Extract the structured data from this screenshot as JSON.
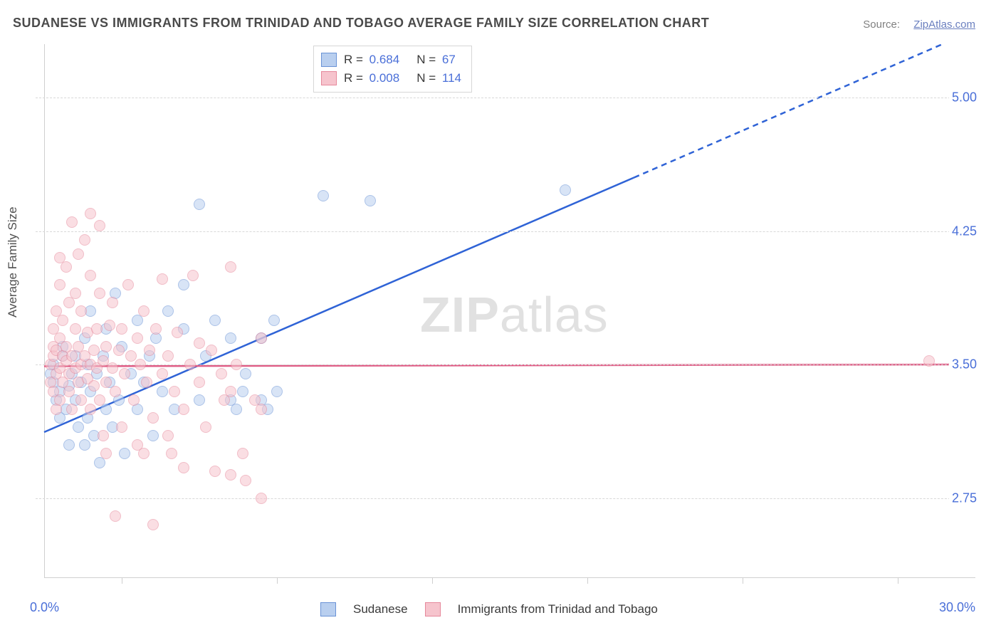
{
  "title": "SUDANESE VS IMMIGRANTS FROM TRINIDAD AND TOBAGO AVERAGE FAMILY SIZE CORRELATION CHART",
  "source_label": "Source:",
  "source_link": "ZipAtlas.com",
  "watermark_1": "ZIP",
  "watermark_2": "atlas",
  "chart": {
    "type": "scatter",
    "y_axis_title": "Average Family Size",
    "xlim": [
      0.0,
      30.0
    ],
    "ylim": [
      2.3,
      5.3
    ],
    "x_min_label": "0.0%",
    "x_max_label": "30.0%",
    "y_ticks": [
      2.75,
      3.5,
      4.25,
      5.0
    ],
    "y_tick_labels": [
      "2.75",
      "3.50",
      "4.25",
      "5.00"
    ],
    "x_tick_positions": [
      2.5,
      7.5,
      12.5,
      17.5,
      22.5,
      27.5
    ],
    "background_color": "#ffffff",
    "grid_color": "#d8d8d8",
    "axis_line_color": "#cfcfcf",
    "marker_radius": 8,
    "marker_opacity": 0.55,
    "series": [
      {
        "id": "sudanese",
        "label": "Sudanese",
        "fill": "#b9cfef",
        "stroke": "#6a93d6",
        "line_color": "#2f63d6",
        "R": "0.684",
        "N": "67",
        "trend": {
          "x1": 0.0,
          "y1": 3.12,
          "x2_solid": 19.0,
          "y2_solid": 4.55,
          "x2_dash": 30.0,
          "y2_dash": 5.38
        },
        "points": [
          [
            0.2,
            3.45
          ],
          [
            0.3,
            3.4
          ],
          [
            0.3,
            3.5
          ],
          [
            0.4,
            3.3
          ],
          [
            0.5,
            3.35
          ],
          [
            0.5,
            3.2
          ],
          [
            0.6,
            3.55
          ],
          [
            0.6,
            3.6
          ],
          [
            0.7,
            3.25
          ],
          [
            0.8,
            3.38
          ],
          [
            0.8,
            3.05
          ],
          [
            0.9,
            3.45
          ],
          [
            1.0,
            3.3
          ],
          [
            1.0,
            3.55
          ],
          [
            1.1,
            3.15
          ],
          [
            1.2,
            3.4
          ],
          [
            1.3,
            3.05
          ],
          [
            1.3,
            3.65
          ],
          [
            1.4,
            3.5
          ],
          [
            1.4,
            3.2
          ],
          [
            1.5,
            3.8
          ],
          [
            1.5,
            3.35
          ],
          [
            1.6,
            3.1
          ],
          [
            1.7,
            3.45
          ],
          [
            1.8,
            2.95
          ],
          [
            1.9,
            3.55
          ],
          [
            2.0,
            3.25
          ],
          [
            2.0,
            3.7
          ],
          [
            2.1,
            3.4
          ],
          [
            2.2,
            3.15
          ],
          [
            2.3,
            3.9
          ],
          [
            2.4,
            3.3
          ],
          [
            2.5,
            3.6
          ],
          [
            2.6,
            3.0
          ],
          [
            2.8,
            3.45
          ],
          [
            3.0,
            3.25
          ],
          [
            3.0,
            3.75
          ],
          [
            3.2,
            3.4
          ],
          [
            3.4,
            3.55
          ],
          [
            3.5,
            3.1
          ],
          [
            3.6,
            3.65
          ],
          [
            3.8,
            3.35
          ],
          [
            4.0,
            3.8
          ],
          [
            4.2,
            3.25
          ],
          [
            4.5,
            3.7
          ],
          [
            4.5,
            3.95
          ],
          [
            5.0,
            4.4
          ],
          [
            5.0,
            3.3
          ],
          [
            5.2,
            3.55
          ],
          [
            5.5,
            3.75
          ],
          [
            6.0,
            3.3
          ],
          [
            6.0,
            3.65
          ],
          [
            6.2,
            3.25
          ],
          [
            6.4,
            3.35
          ],
          [
            6.5,
            3.45
          ],
          [
            7.0,
            3.65
          ],
          [
            7.0,
            3.3
          ],
          [
            7.2,
            3.25
          ],
          [
            7.4,
            3.75
          ],
          [
            7.5,
            3.35
          ],
          [
            9.0,
            4.45
          ],
          [
            10.5,
            4.42
          ],
          [
            16.8,
            4.48
          ]
        ]
      },
      {
        "id": "trinidad",
        "label": "Immigrants from Trinidad and Tobago",
        "fill": "#f6c4cd",
        "stroke": "#e6889b",
        "line_color": "#e05d86",
        "R": "0.008",
        "N": "114",
        "trend": {
          "x1": 0.0,
          "y1": 3.49,
          "x2_solid": 30.0,
          "y2_solid": 3.5,
          "x2_dash": 30.0,
          "y2_dash": 3.5
        },
        "points": [
          [
            0.2,
            3.5
          ],
          [
            0.2,
            3.4
          ],
          [
            0.3,
            3.55
          ],
          [
            0.3,
            3.35
          ],
          [
            0.3,
            3.6
          ],
          [
            0.3,
            3.7
          ],
          [
            0.4,
            3.25
          ],
          [
            0.4,
            3.45
          ],
          [
            0.4,
            3.8
          ],
          [
            0.4,
            3.58
          ],
          [
            0.5,
            3.48
          ],
          [
            0.5,
            3.65
          ],
          [
            0.5,
            3.95
          ],
          [
            0.5,
            4.1
          ],
          [
            0.5,
            3.3
          ],
          [
            0.6,
            3.55
          ],
          [
            0.6,
            3.4
          ],
          [
            0.6,
            3.75
          ],
          [
            0.7,
            3.52
          ],
          [
            0.7,
            3.6
          ],
          [
            0.7,
            4.05
          ],
          [
            0.8,
            3.45
          ],
          [
            0.8,
            3.35
          ],
          [
            0.8,
            3.85
          ],
          [
            0.9,
            3.55
          ],
          [
            0.9,
            3.25
          ],
          [
            0.9,
            4.3
          ],
          [
            1.0,
            3.48
          ],
          [
            1.0,
            3.7
          ],
          [
            1.0,
            3.9
          ],
          [
            1.1,
            3.4
          ],
          [
            1.1,
            3.6
          ],
          [
            1.1,
            4.12
          ],
          [
            1.2,
            3.5
          ],
          [
            1.2,
            3.3
          ],
          [
            1.2,
            3.8
          ],
          [
            1.3,
            3.55
          ],
          [
            1.3,
            4.2
          ],
          [
            1.4,
            3.42
          ],
          [
            1.4,
            3.68
          ],
          [
            1.5,
            3.5
          ],
          [
            1.5,
            3.25
          ],
          [
            1.5,
            4.0
          ],
          [
            1.5,
            4.35
          ],
          [
            1.6,
            3.58
          ],
          [
            1.6,
            3.38
          ],
          [
            1.7,
            3.7
          ],
          [
            1.7,
            3.48
          ],
          [
            1.8,
            3.3
          ],
          [
            1.8,
            3.9
          ],
          [
            1.8,
            4.28
          ],
          [
            1.9,
            3.52
          ],
          [
            1.9,
            3.1
          ],
          [
            2.0,
            3.6
          ],
          [
            2.0,
            3.4
          ],
          [
            2.0,
            3.0
          ],
          [
            2.1,
            3.72
          ],
          [
            2.2,
            3.48
          ],
          [
            2.2,
            3.85
          ],
          [
            2.3,
            3.35
          ],
          [
            2.3,
            2.65
          ],
          [
            2.4,
            3.58
          ],
          [
            2.5,
            3.15
          ],
          [
            2.5,
            3.7
          ],
          [
            2.6,
            3.45
          ],
          [
            2.7,
            3.95
          ],
          [
            2.8,
            3.55
          ],
          [
            2.9,
            3.3
          ],
          [
            3.0,
            3.65
          ],
          [
            3.0,
            3.05
          ],
          [
            3.1,
            3.5
          ],
          [
            3.2,
            3.0
          ],
          [
            3.2,
            3.8
          ],
          [
            3.3,
            3.4
          ],
          [
            3.4,
            3.58
          ],
          [
            3.5,
            3.2
          ],
          [
            3.5,
            2.6
          ],
          [
            3.6,
            3.7
          ],
          [
            3.8,
            3.45
          ],
          [
            3.8,
            3.98
          ],
          [
            4.0,
            3.1
          ],
          [
            4.0,
            3.55
          ],
          [
            4.1,
            3.0
          ],
          [
            4.2,
            3.35
          ],
          [
            4.3,
            3.68
          ],
          [
            4.5,
            3.25
          ],
          [
            4.5,
            2.92
          ],
          [
            4.7,
            3.5
          ],
          [
            4.8,
            4.0
          ],
          [
            5.0,
            3.4
          ],
          [
            5.0,
            3.62
          ],
          [
            5.2,
            3.15
          ],
          [
            5.4,
            3.58
          ],
          [
            5.5,
            2.9
          ],
          [
            5.7,
            3.45
          ],
          [
            5.8,
            3.3
          ],
          [
            6.0,
            4.05
          ],
          [
            6.0,
            3.35
          ],
          [
            6.0,
            2.88
          ],
          [
            6.2,
            3.5
          ],
          [
            6.4,
            3.0
          ],
          [
            6.5,
            2.85
          ],
          [
            6.8,
            3.3
          ],
          [
            7.0,
            3.25
          ],
          [
            7.0,
            3.65
          ],
          [
            7.0,
            2.75
          ],
          [
            28.5,
            3.52
          ]
        ]
      }
    ]
  },
  "stats_legend": {
    "R_label": "R =",
    "N_label": "N ="
  },
  "title_fontsize": 18,
  "label_fontsize": 17,
  "tick_fontsize": 18,
  "tick_color": "#4a6fd8"
}
